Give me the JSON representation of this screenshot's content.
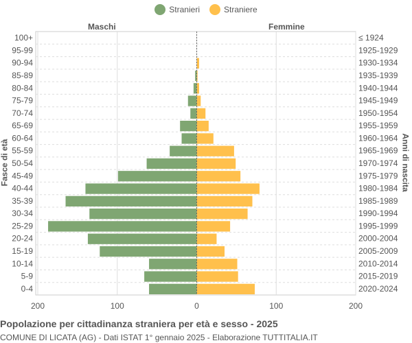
{
  "chart_data": {
    "type": "bar",
    "title": "Popolazione per cittadinanza straniera per età e sesso - 2025",
    "subtitle": "COMUNE DI LICATA (AG) - Dati ISTAT 1° gennaio 2025 - Elaborazione TUTTITALIA.IT",
    "ylabel_left": "Fasce di età",
    "ylabel_right": "Anni di nascita",
    "left_header": "Maschi",
    "right_header": "Femmine",
    "legend_position": "top",
    "xlim": [
      -200,
      200
    ],
    "xticks": [
      "200",
      "100",
      "0",
      "100",
      "200"
    ],
    "categories": [
      "100+",
      "95-99",
      "90-94",
      "85-89",
      "80-84",
      "75-79",
      "70-74",
      "65-69",
      "60-64",
      "55-59",
      "50-54",
      "45-49",
      "40-44",
      "35-39",
      "30-34",
      "25-29",
      "20-24",
      "15-19",
      "10-14",
      "5-9",
      "0-4"
    ],
    "birth_years": [
      "≤ 1924",
      "1925-1929",
      "1930-1934",
      "1935-1939",
      "1940-1944",
      "1945-1949",
      "1950-1954",
      "1955-1959",
      "1960-1964",
      "1965-1969",
      "1970-1974",
      "1975-1979",
      "1980-1984",
      "1985-1989",
      "1990-1994",
      "1995-1999",
      "2000-2004",
      "2005-2009",
      "2010-2014",
      "2015-2019",
      "2020-2024"
    ],
    "series": [
      {
        "name": "Stranieri",
        "color": "#7fa672",
        "values": [
          0,
          0,
          0,
          2,
          4,
          11,
          8,
          21,
          19,
          34,
          63,
          99,
          140,
          165,
          135,
          187,
          137,
          122,
          60,
          66,
          60
        ]
      },
      {
        "name": "Straniere",
        "color": "#ffc04c",
        "values": [
          0,
          0,
          3,
          1,
          3,
          5,
          11,
          15,
          21,
          47,
          49,
          55,
          79,
          70,
          64,
          42,
          25,
          35,
          51,
          52,
          73
        ]
      }
    ],
    "grid": true
  }
}
